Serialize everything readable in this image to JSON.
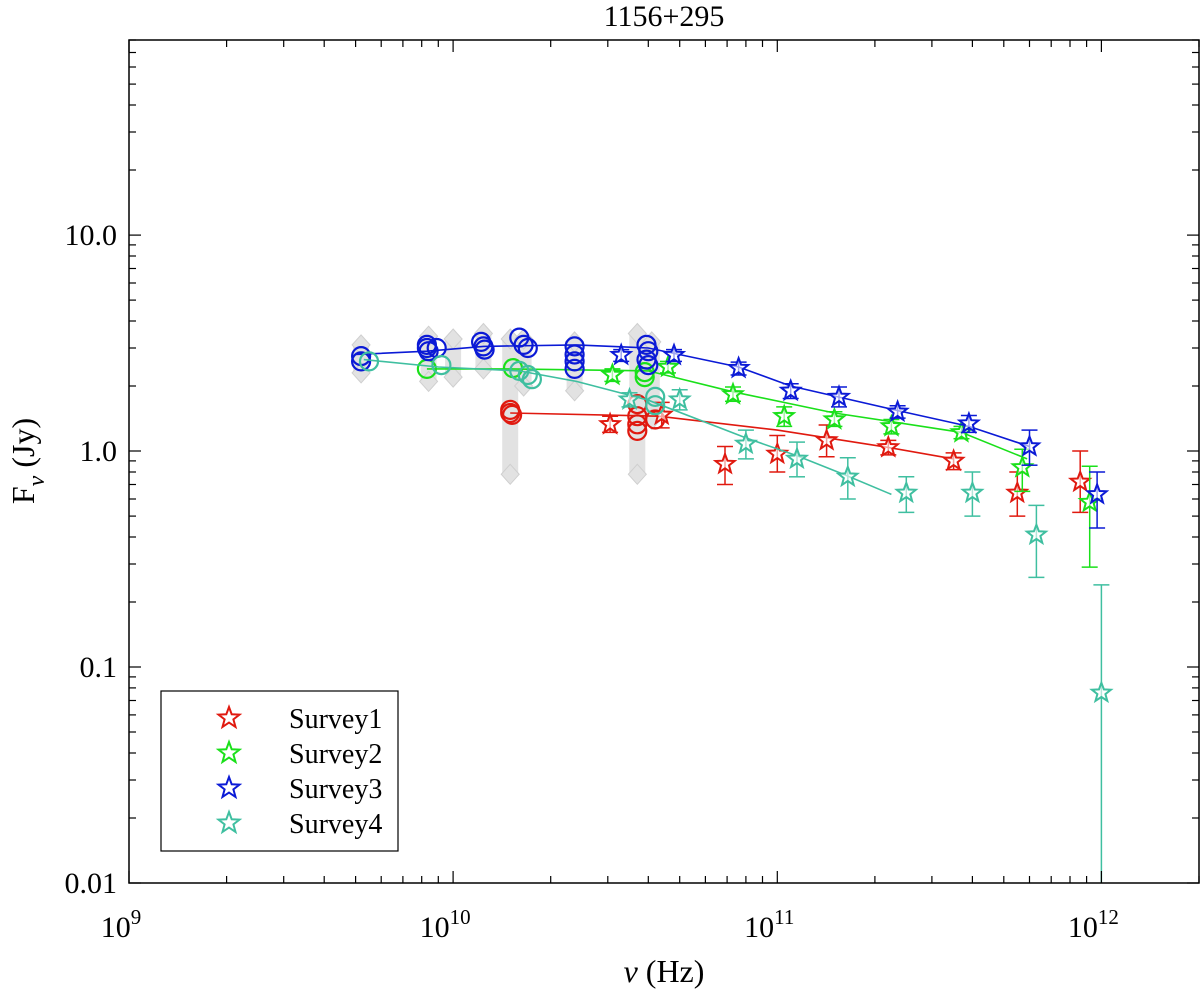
{
  "chart_data": {
    "type": "scatter",
    "title": "1156+295",
    "xlabel_symbol": "ν",
    "xlabel_unit": "(Hz)",
    "ylabel_main": "F",
    "ylabel_sub": "ν",
    "ylabel_unit": "(Jy)",
    "x_scale": "log",
    "y_scale": "log",
    "xlim": [
      1000000000.0,
      2000000000000.0
    ],
    "ylim": [
      0.01,
      80
    ],
    "grid": false,
    "legend_position": "bottom-left",
    "x_ticks": [
      {
        "value": 1000000000.0,
        "base": "10",
        "exp": "9"
      },
      {
        "value": 10000000000.0,
        "base": "10",
        "exp": "10"
      },
      {
        "value": 100000000000.0,
        "base": "10",
        "exp": "11"
      },
      {
        "value": 1000000000000.0,
        "base": "10",
        "exp": "12"
      }
    ],
    "y_ticks": [
      {
        "value": 0.01,
        "label": "0.01"
      },
      {
        "value": 0.1,
        "label": "0.1"
      },
      {
        "value": 1,
        "label": "1.0"
      },
      {
        "value": 10,
        "label": "10.0"
      }
    ],
    "background_points": [
      {
        "x": 5200000000.0,
        "ymin": 2.3,
        "ymax": 3.1
      },
      {
        "x": 8400000000.0,
        "ymin": 2.1,
        "ymax": 3.4
      },
      {
        "x": 10000000000.0,
        "ymin": 2.2,
        "ymax": 3.3
      },
      {
        "x": 12400000000.0,
        "ymin": 2.4,
        "ymax": 3.5
      },
      {
        "x": 15000000000.0,
        "ymin": 0.78,
        "ymax": 3.3
      },
      {
        "x": 16500000000.0,
        "ymin": 2.0,
        "ymax": 3.3
      },
      {
        "x": 23700000000.0,
        "ymin": 1.9,
        "ymax": 3.2
      },
      {
        "x": 37000000000.0,
        "ymin": 0.78,
        "ymax": 3.5
      },
      {
        "x": 41000000000.0,
        "ymin": 1.4,
        "ymax": 3.2
      }
    ],
    "series": [
      {
        "name": "Survey1",
        "color": "#e0190f",
        "fit_line": [
          [
            15000000000.0,
            1.5
          ],
          [
            43000000000.0,
            1.45
          ],
          [
            100000000000.0,
            1.25
          ],
          [
            220000000000.0,
            1.04
          ],
          [
            350000000000.0,
            0.92
          ]
        ],
        "circles": [
          {
            "x": 15000000000.0,
            "y": 1.55
          },
          {
            "x": 15000000000.0,
            "y": 1.5
          },
          {
            "x": 15200000000.0,
            "y": 1.47
          },
          {
            "x": 37000000000.0,
            "y": 1.65
          },
          {
            "x": 37000000000.0,
            "y": 1.45
          },
          {
            "x": 37000000000.0,
            "y": 1.33
          },
          {
            "x": 37000000000.0,
            "y": 1.24
          },
          {
            "x": 42000000000.0,
            "y": 1.4
          }
        ],
        "stars": [
          {
            "x": 30500000000.0,
            "y": 1.33,
            "lo": 1.22,
            "hi": 1.45
          },
          {
            "x": 44000000000.0,
            "y": 1.47,
            "lo": 1.28,
            "hi": 1.68
          },
          {
            "x": 69000000000.0,
            "y": 0.87,
            "lo": 0.7,
            "hi": 1.05
          },
          {
            "x": 100000000000.0,
            "y": 0.97,
            "lo": 0.8,
            "hi": 1.18
          },
          {
            "x": 142000000000.0,
            "y": 1.12,
            "lo": 0.94,
            "hi": 1.32
          },
          {
            "x": 220000000000.0,
            "y": 1.04,
            "lo": 0.96,
            "hi": 1.12
          },
          {
            "x": 350000000000.0,
            "y": 0.9,
            "lo": 0.82,
            "hi": 0.98
          },
          {
            "x": 550000000000.0,
            "y": 0.64,
            "lo": 0.5,
            "hi": 0.8
          },
          {
            "x": 860000000000.0,
            "y": 0.72,
            "lo": 0.52,
            "hi": 1.0
          }
        ]
      },
      {
        "name": "Survey2",
        "color": "#1ae01a",
        "fit_line": [
          [
            8300000000.0,
            2.4
          ],
          [
            15000000000.0,
            2.4
          ],
          [
            40000000000.0,
            2.35
          ],
          [
            73000000000.0,
            1.88
          ],
          [
            150000000000.0,
            1.5
          ],
          [
            370000000000.0,
            1.22
          ],
          [
            590000000000.0,
            0.92
          ]
        ],
        "circles": [
          {
            "x": 8300000000.0,
            "y": 2.4
          },
          {
            "x": 15300000000.0,
            "y": 2.42
          },
          {
            "x": 39000000000.0,
            "y": 2.32
          },
          {
            "x": 39000000000.0,
            "y": 2.2
          }
        ],
        "stars": [
          {
            "x": 31000000000.0,
            "y": 2.25,
            "lo": 2.1,
            "hi": 2.4
          },
          {
            "x": 46000000000.0,
            "y": 2.45,
            "lo": 2.3,
            "hi": 2.6
          },
          {
            "x": 73000000000.0,
            "y": 1.83,
            "lo": 1.7,
            "hi": 1.98
          },
          {
            "x": 105000000000.0,
            "y": 1.45,
            "lo": 1.3,
            "hi": 1.6
          },
          {
            "x": 150000000000.0,
            "y": 1.4,
            "lo": 1.3,
            "hi": 1.52
          },
          {
            "x": 225000000000.0,
            "y": 1.3,
            "lo": 1.2,
            "hi": 1.4
          },
          {
            "x": 370000000000.0,
            "y": 1.22,
            "lo": 1.14,
            "hi": 1.3
          },
          {
            "x": 570000000000.0,
            "y": 0.84,
            "lo": 0.65,
            "hi": 1.02
          },
          {
            "x": 920000000000.0,
            "y": 0.58,
            "lo": 0.29,
            "hi": 0.85
          }
        ]
      },
      {
        "name": "Survey3",
        "color": "#0b1ad6",
        "fit_line": [
          [
            5000000000.0,
            2.8
          ],
          [
            8300000000.0,
            2.9
          ],
          [
            12400000000.0,
            3.05
          ],
          [
            24000000000.0,
            3.1
          ],
          [
            40000000000.0,
            3.0
          ],
          [
            76000000000.0,
            2.45
          ],
          [
            110000000000.0,
            2.0
          ],
          [
            230000000000.0,
            1.55
          ],
          [
            390000000000.0,
            1.3
          ],
          [
            600000000000.0,
            1.05
          ]
        ],
        "circles": [
          {
            "x": 5200000000.0,
            "y": 2.75
          },
          {
            "x": 5200000000.0,
            "y": 2.6
          },
          {
            "x": 8300000000.0,
            "y": 3.1
          },
          {
            "x": 8300000000.0,
            "y": 3.0
          },
          {
            "x": 8400000000.0,
            "y": 2.9
          },
          {
            "x": 8900000000.0,
            "y": 3.0
          },
          {
            "x": 12200000000.0,
            "y": 3.2
          },
          {
            "x": 12400000000.0,
            "y": 3.05
          },
          {
            "x": 12500000000.0,
            "y": 2.95
          },
          {
            "x": 16000000000.0,
            "y": 3.35
          },
          {
            "x": 16500000000.0,
            "y": 3.1
          },
          {
            "x": 17000000000.0,
            "y": 3.0
          },
          {
            "x": 23700000000.0,
            "y": 3.05
          },
          {
            "x": 23700000000.0,
            "y": 2.8
          },
          {
            "x": 23700000000.0,
            "y": 2.6
          },
          {
            "x": 23700000000.0,
            "y": 2.4
          },
          {
            "x": 39500000000.0,
            "y": 3.1
          },
          {
            "x": 40000000000.0,
            "y": 2.9
          },
          {
            "x": 39500000000.0,
            "y": 2.65
          },
          {
            "x": 40000000000.0,
            "y": 2.5
          }
        ],
        "stars": [
          {
            "x": 33000000000.0,
            "y": 2.78,
            "lo": 2.6,
            "hi": 2.95
          },
          {
            "x": 48000000000.0,
            "y": 2.78,
            "lo": 2.6,
            "hi": 2.95
          },
          {
            "x": 76000000000.0,
            "y": 2.42,
            "lo": 2.25,
            "hi": 2.58
          },
          {
            "x": 110000000000.0,
            "y": 1.9,
            "lo": 1.75,
            "hi": 2.05
          },
          {
            "x": 155000000000.0,
            "y": 1.78,
            "lo": 1.6,
            "hi": 1.98
          },
          {
            "x": 235000000000.0,
            "y": 1.52,
            "lo": 1.42,
            "hi": 1.62
          },
          {
            "x": 390000000000.0,
            "y": 1.34,
            "lo": 1.22,
            "hi": 1.46
          },
          {
            "x": 600000000000.0,
            "y": 1.05,
            "lo": 0.86,
            "hi": 1.25
          },
          {
            "x": 970000000000.0,
            "y": 0.63,
            "lo": 0.44,
            "hi": 0.8
          }
        ]
      },
      {
        "name": "Survey4",
        "color": "#3fbfa0",
        "fit_line": [
          [
            5300000000.0,
            2.65
          ],
          [
            9000000000.0,
            2.45
          ],
          [
            16000000000.0,
            2.35
          ],
          [
            24000000000.0,
            2.1
          ],
          [
            40000000000.0,
            1.72
          ],
          [
            80000000000.0,
            1.15
          ],
          [
            115000000000.0,
            0.95
          ],
          [
            160000000000.0,
            0.78
          ],
          [
            225000000000.0,
            0.63
          ]
        ],
        "circles": [
          {
            "x": 5500000000.0,
            "y": 2.6
          },
          {
            "x": 9200000000.0,
            "y": 2.5
          },
          {
            "x": 16000000000.0,
            "y": 2.35
          },
          {
            "x": 17000000000.0,
            "y": 2.25
          },
          {
            "x": 17500000000.0,
            "y": 2.15
          },
          {
            "x": 42000000000.0,
            "y": 1.78
          },
          {
            "x": 42000000000.0,
            "y": 1.63
          }
        ],
        "stars": [
          {
            "x": 35000000000.0,
            "y": 1.73,
            "lo": 1.6,
            "hi": 1.86
          },
          {
            "x": 50000000000.0,
            "y": 1.73,
            "lo": 1.55,
            "hi": 1.92
          },
          {
            "x": 80000000000.0,
            "y": 1.08,
            "lo": 0.92,
            "hi": 1.25
          },
          {
            "x": 115000000000.0,
            "y": 0.92,
            "lo": 0.76,
            "hi": 1.1
          },
          {
            "x": 165000000000.0,
            "y": 0.76,
            "lo": 0.6,
            "hi": 0.93
          },
          {
            "x": 250000000000.0,
            "y": 0.64,
            "lo": 0.52,
            "hi": 0.76
          },
          {
            "x": 400000000000.0,
            "y": 0.64,
            "lo": 0.5,
            "hi": 0.8
          },
          {
            "x": 630000000000.0,
            "y": 0.41,
            "lo": 0.26,
            "hi": 0.56
          },
          {
            "x": 1000000000000.0,
            "y": 0.076,
            "lo": 0.01,
            "hi": 0.24
          }
        ]
      }
    ]
  }
}
